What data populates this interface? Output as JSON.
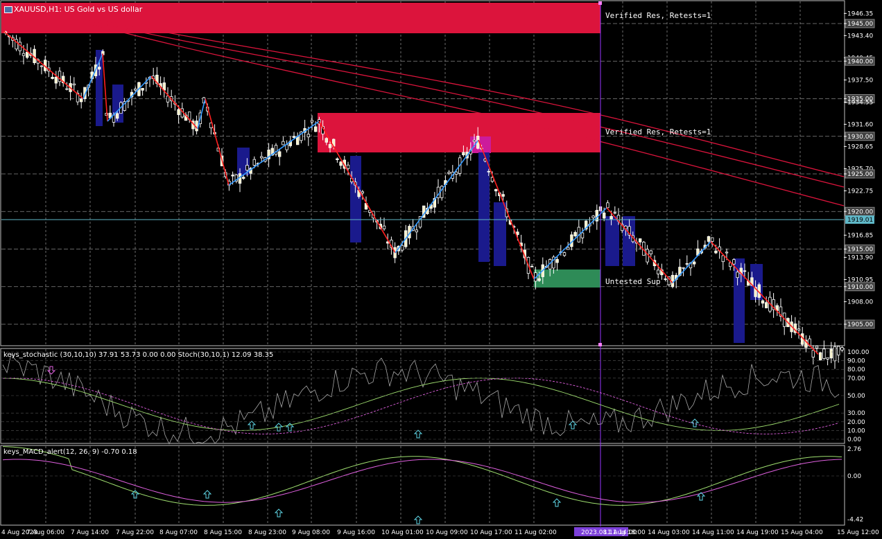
{
  "symbol_title": "XAUUSD,H1: US Gold vs US dollar",
  "price_axis": {
    "labels": [
      "1946.35",
      "1945.00",
      "1943.40",
      "1940.45",
      "1940.00",
      "1937.50",
      "1935.00",
      "1934.55",
      "1931.60",
      "1930.00",
      "1928.65",
      "1925.70",
      "1925.00",
      "1922.75",
      "1920.00",
      "1919.01",
      "1916.85",
      "1915.00",
      "1913.90",
      "1910.95",
      "1910.00",
      "1908.00",
      "1905.00"
    ],
    "current_price": "1919.01"
  },
  "zones": [
    {
      "label": "Verified Res, Retests=1"
    },
    {
      "label": "Verified Res, Retests=1"
    },
    {
      "label": "Untested Sup"
    }
  ],
  "stoch_panel": {
    "title": "keys_stochastic (30,10,10) 37.91 53.73 0.00 0.00 Stoch(30,10,1) 12.09 38.35",
    "levels": [
      "100.00",
      "90.00",
      "80.00",
      "70.00",
      "50.00",
      "30.00",
      "20.00",
      "10.00",
      "0.00"
    ]
  },
  "macd_panel": {
    "title": "keys_MACD_alert(12, 26, 9) -0.70 0.18",
    "levels": [
      "2.76",
      "0.00",
      "-4.42"
    ]
  },
  "time_axis": {
    "labels": [
      "4 Aug 2023",
      "7 Aug 06:00",
      "7 Aug 14:00",
      "7 Aug 22:00",
      "8 Aug 07:00",
      "8 Aug 15:00",
      "8 Aug 23:00",
      "9 Aug 08:00",
      "9 Aug 16:00",
      "10 Aug 01:00",
      "10 Aug 09:00",
      "10 Aug 17:00",
      "11 Aug 02:00",
      "2023.08.11 14:00",
      "11 Aug 18:00",
      "14 Aug 03:00",
      "14 Aug 11:00",
      "14 Aug 19:00",
      "15 Aug 04:00",
      "15 Aug 12:00"
    ],
    "highlight": "2023.08.11 14:00"
  },
  "colors": {
    "bull": "#f5f0c8",
    "bear": "#ffffff",
    "res_zone": "#dc143c",
    "sup_zone": "#2e8b57",
    "zz_up": "#3399ff",
    "zz_down": "#ff1f1f",
    "ma": "#dc143c",
    "crosshair": "#9933ff"
  }
}
